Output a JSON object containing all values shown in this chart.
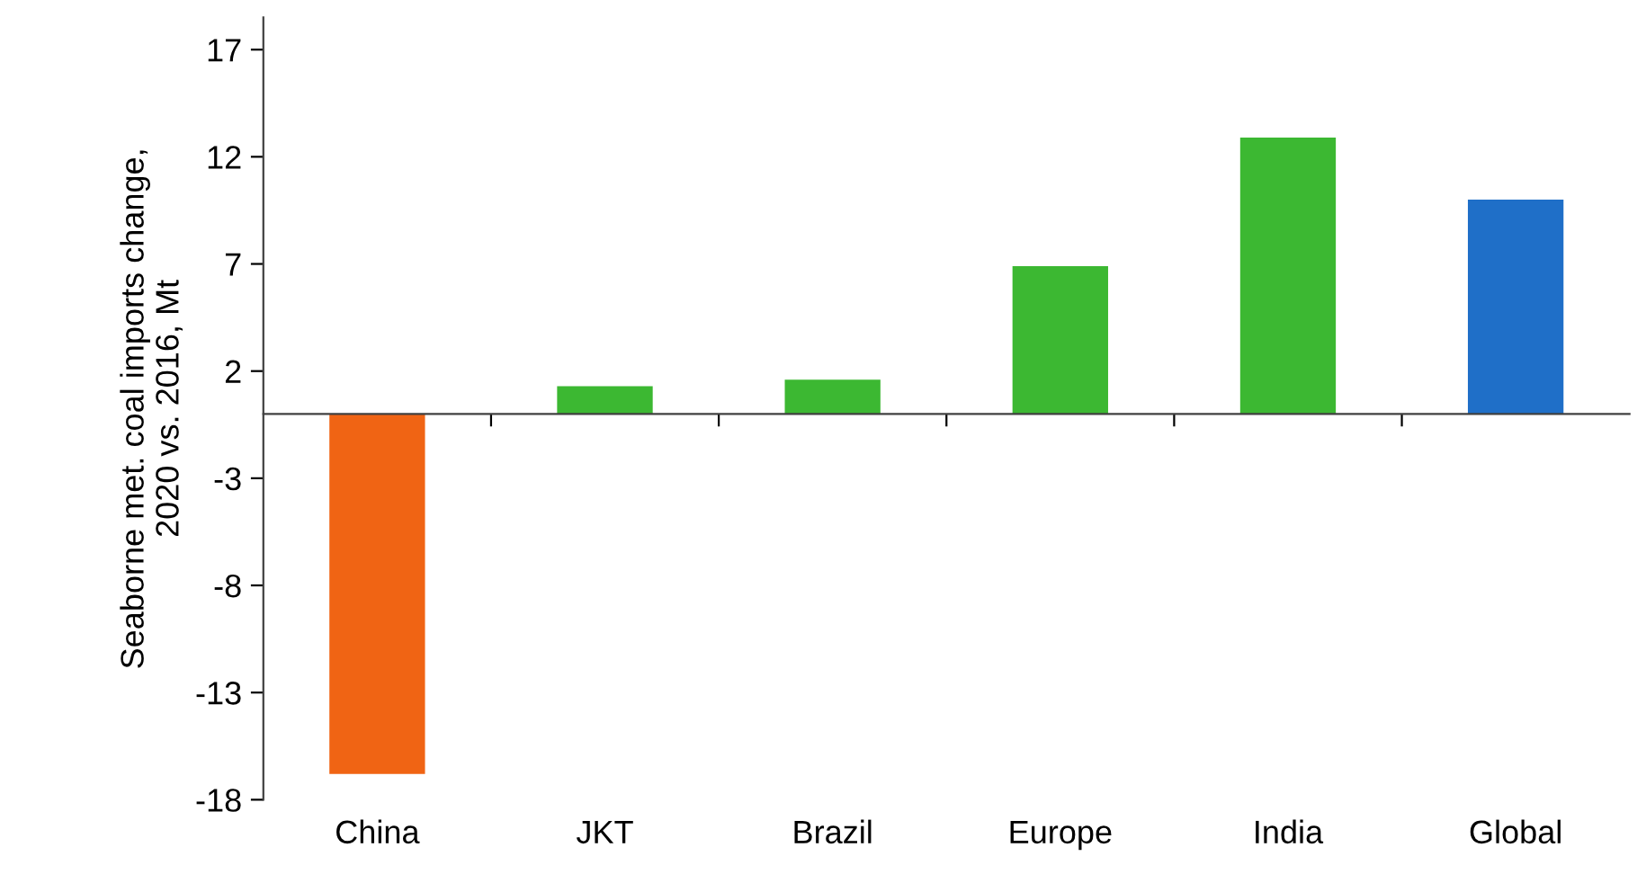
{
  "chart_data": {
    "type": "bar",
    "ylabel": "Seaborne met. coal imports change,\n2020 vs. 2016, Mt",
    "categories": [
      "China",
      "JKT",
      "Brazil",
      "Europe",
      "India",
      "Global"
    ],
    "values": [
      -16.8,
      1.3,
      1.6,
      6.9,
      12.9,
      10.0
    ],
    "colors": [
      "#f06414",
      "#3cb832",
      "#3cb832",
      "#3cb832",
      "#3cb832",
      "#1f6fc8"
    ],
    "ylim": [
      -18,
      18.5
    ],
    "yticks": [
      -18,
      -13,
      -8,
      -3,
      2,
      7,
      12,
      17
    ],
    "grid": false
  }
}
